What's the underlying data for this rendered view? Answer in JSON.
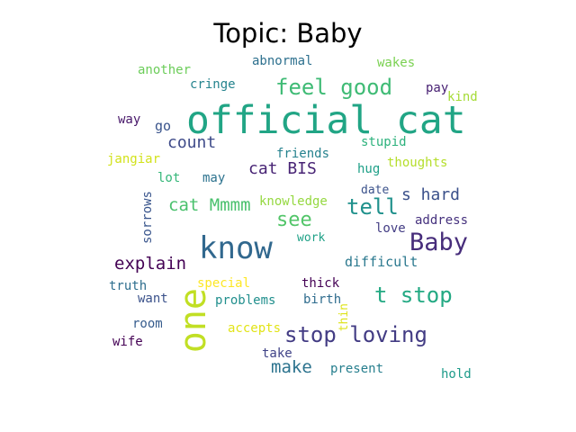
{
  "title": "Topic: Baby",
  "words": [
    {
      "text": "official cat",
      "color": "#21a585"
    },
    {
      "text": "one",
      "color": "#c1df24"
    },
    {
      "text": "know",
      "color": "#31688e"
    },
    {
      "text": "Baby",
      "color": "#472d7b"
    },
    {
      "text": "feel good",
      "color": "#3fbb75"
    },
    {
      "text": "tell",
      "color": "#20918c"
    },
    {
      "text": "stop loving",
      "color": "#433c84"
    },
    {
      "text": "t stop",
      "color": "#23a983"
    },
    {
      "text": "see",
      "color": "#52c569"
    },
    {
      "text": "cat Mmmm",
      "color": "#4ac16d"
    },
    {
      "text": "explain",
      "color": "#440154"
    },
    {
      "text": "make",
      "color": "#2c738e"
    },
    {
      "text": "s hard",
      "color": "#3b518b"
    },
    {
      "text": "count",
      "color": "#3e4a89"
    },
    {
      "text": "cat BIS",
      "color": "#482475"
    },
    {
      "text": "difficult",
      "color": "#2a788e"
    },
    {
      "text": "abnormal",
      "color": "#2d708e"
    },
    {
      "text": "wakes",
      "color": "#7ad151"
    },
    {
      "text": "another",
      "color": "#6ccd5a"
    },
    {
      "text": "cringe",
      "color": "#25848e"
    },
    {
      "text": "pay",
      "color": "#482173"
    },
    {
      "text": "kind",
      "color": "#a5db36"
    },
    {
      "text": "way",
      "color": "#48186a"
    },
    {
      "text": "go",
      "color": "#3a548c"
    },
    {
      "text": "stupid",
      "color": "#2db27d"
    },
    {
      "text": "friends",
      "color": "#26828e"
    },
    {
      "text": "jangiar",
      "color": "#d2e21b"
    },
    {
      "text": "thoughts",
      "color": "#b5de2b"
    },
    {
      "text": "lot",
      "color": "#35b779"
    },
    {
      "text": "may",
      "color": "#2c728e"
    },
    {
      "text": "hug",
      "color": "#1fa088"
    },
    {
      "text": "date",
      "color": "#3b528b"
    },
    {
      "text": "sorrows",
      "color": "#39558c"
    },
    {
      "text": "knowledge",
      "color": "#95d840"
    },
    {
      "text": "address",
      "color": "#46327e"
    },
    {
      "text": "love",
      "color": "#433d84"
    },
    {
      "text": "work",
      "color": "#1fa187"
    },
    {
      "text": "truth",
      "color": "#2e6e8e"
    },
    {
      "text": "special",
      "color": "#fde725"
    },
    {
      "text": "thick",
      "color": "#440154"
    },
    {
      "text": "want",
      "color": "#3b528b"
    },
    {
      "text": "problems",
      "color": "#218f8d"
    },
    {
      "text": "birth",
      "color": "#2f6c8e"
    },
    {
      "text": "thin",
      "color": "#dde318"
    },
    {
      "text": "room",
      "color": "#365c8d"
    },
    {
      "text": "accepts",
      "color": "#e2e418"
    },
    {
      "text": "wife",
      "color": "#440154"
    },
    {
      "text": "take",
      "color": "#404387"
    },
    {
      "text": "present",
      "color": "#277f8e"
    },
    {
      "text": "hold",
      "color": "#1e9b8a"
    }
  ]
}
